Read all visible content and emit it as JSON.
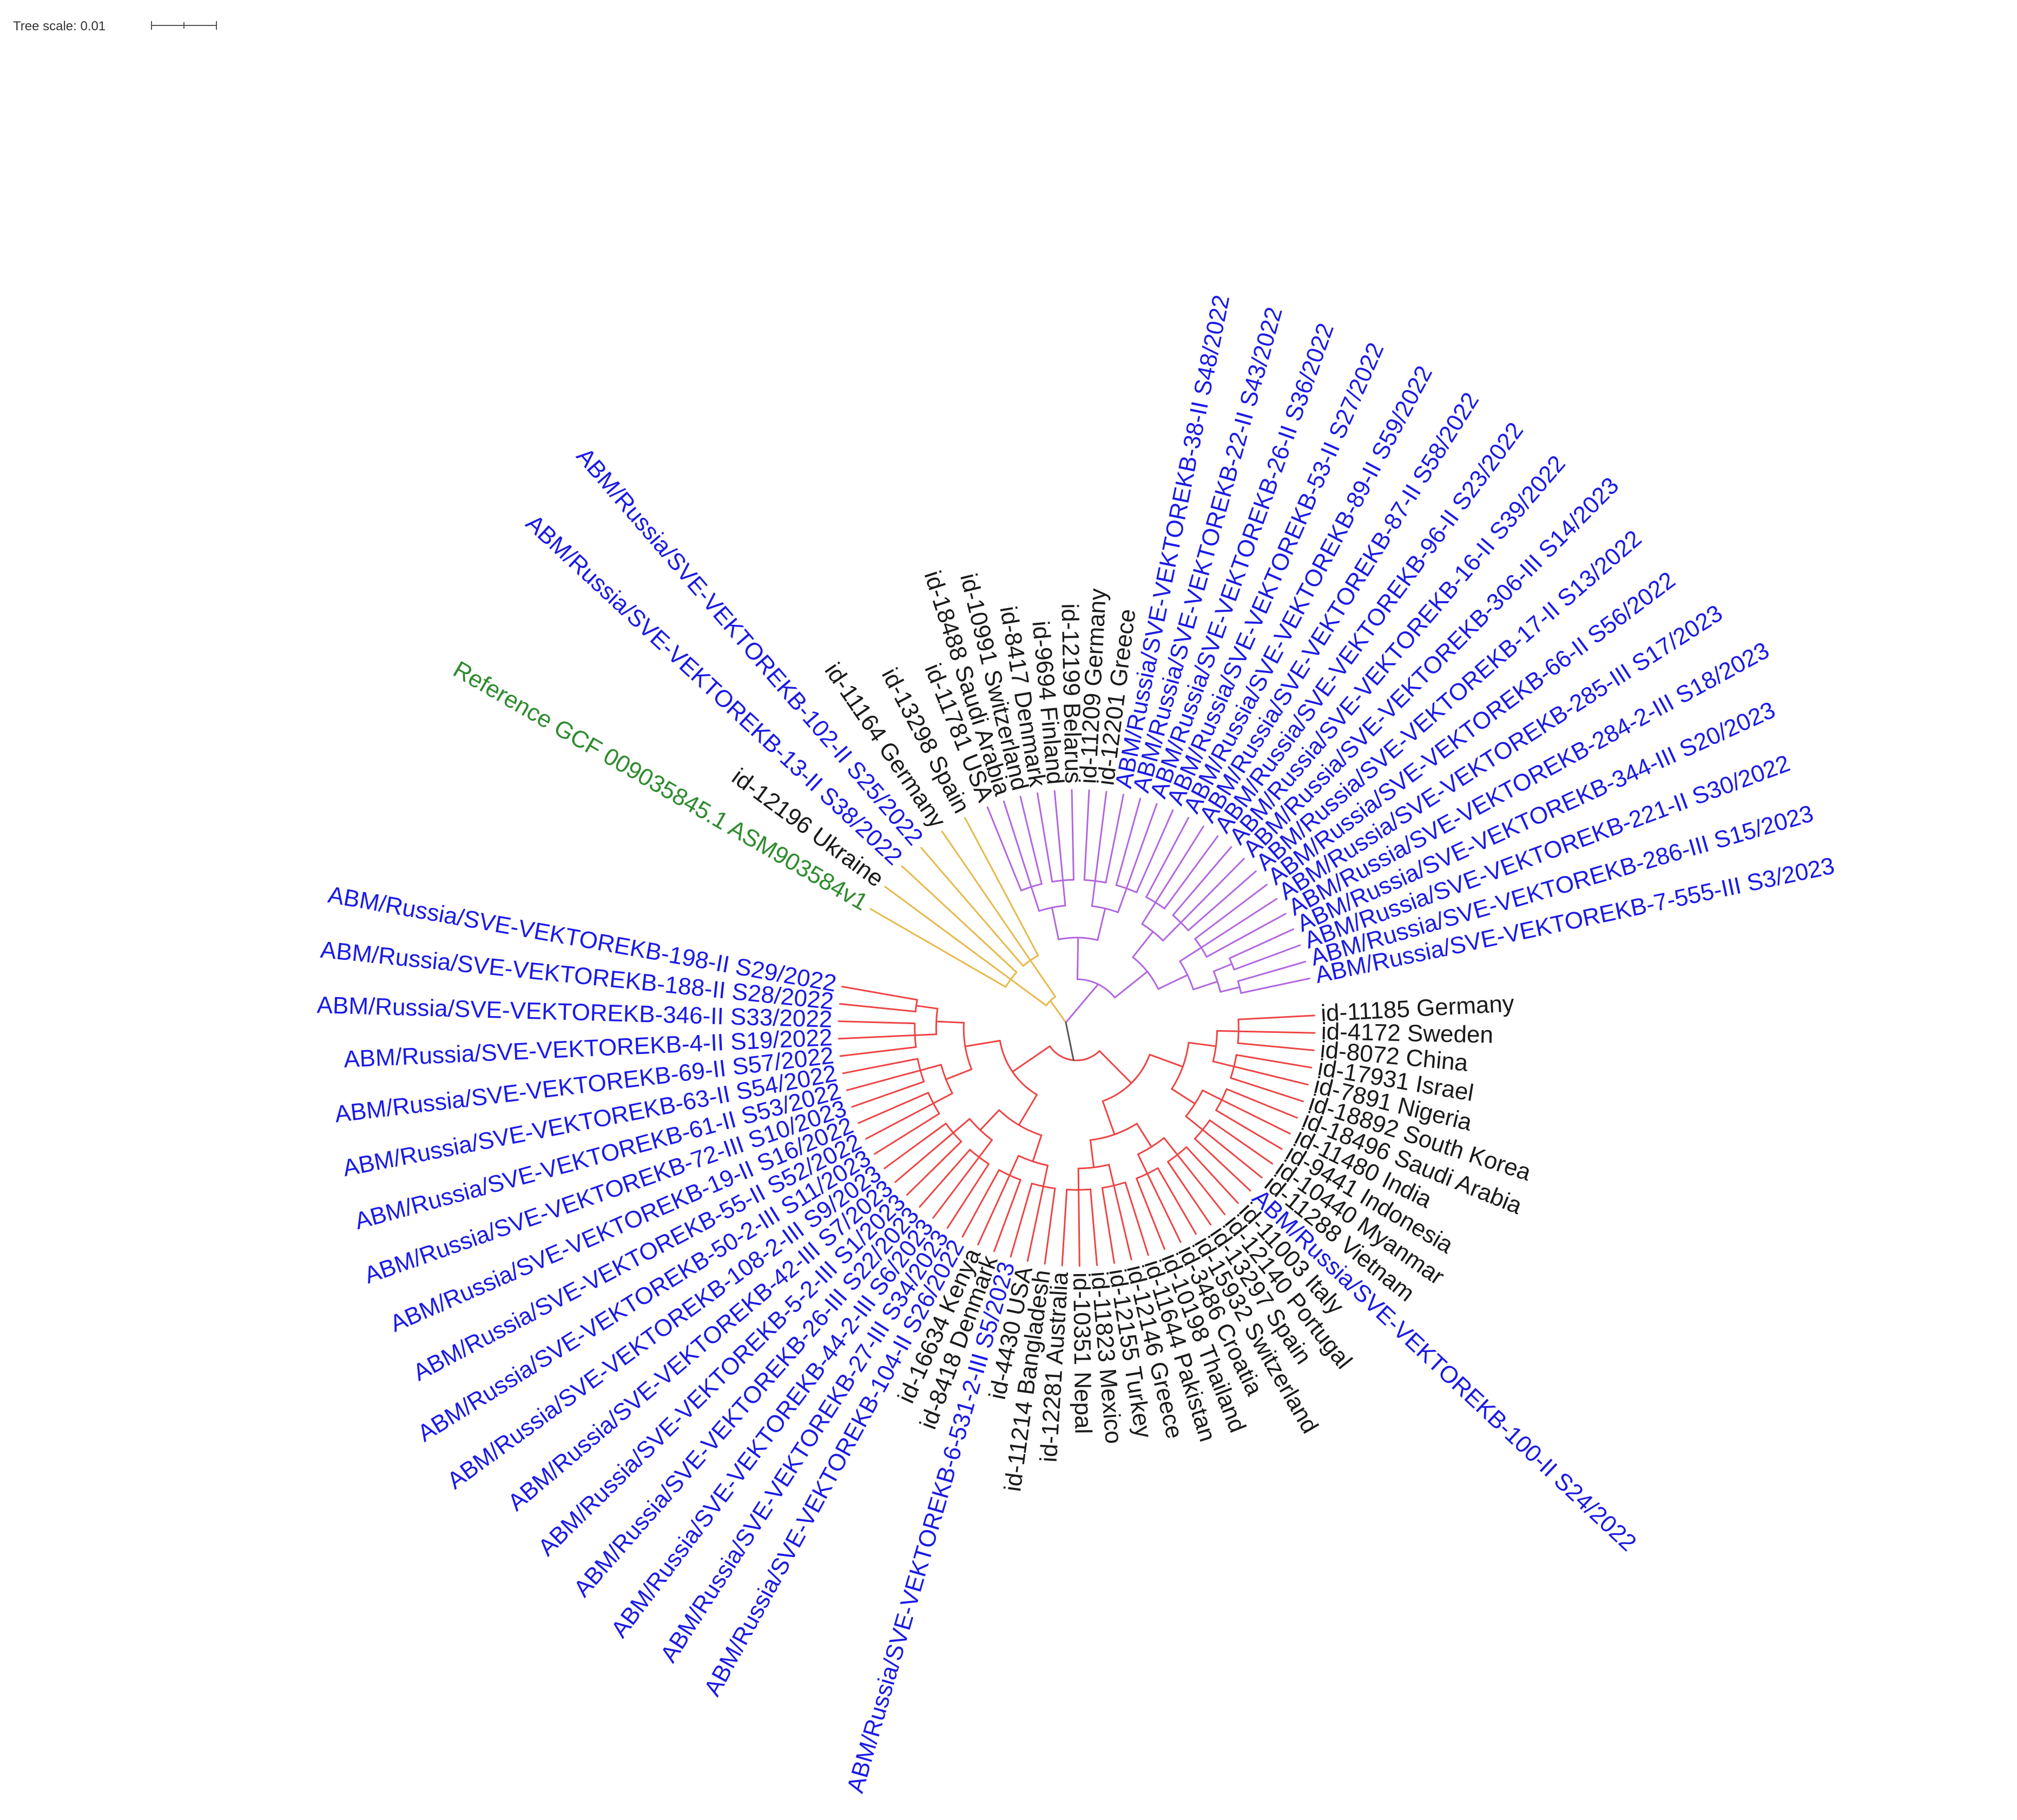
{
  "scale": {
    "label": "Tree scale: 0.01"
  },
  "colors": {
    "orange_clade": "#e8b84a",
    "purple_clade": "#b266e0",
    "red_clade": "#ee4444",
    "root": "#555555",
    "label_blue": "#1a1ae6",
    "label_black": "#1a1a1a",
    "label_green": "#2e8b2e"
  },
  "tree": {
    "orange_leaves": [
      {
        "text": "Reference GCF 009035845.1 ASM903584v1",
        "color": "green"
      },
      {
        "text": "id-12196 Ukraine",
        "color": "black"
      },
      {
        "text": "ABM/Russia/SVE-VEKTOREKB-13-II S38/2022",
        "color": "blue"
      },
      {
        "text": "ABM/Russia/SVE-VEKTOREKB-102-II S25/2022",
        "color": "blue"
      },
      {
        "text": "id-11164 Germany",
        "color": "black"
      },
      {
        "text": "id-13298 Spain",
        "color": "black"
      }
    ],
    "purple_leaves": [
      {
        "text": "id-11781 USA",
        "color": "black"
      },
      {
        "text": "id-18488 Saudi Arabia",
        "color": "black"
      },
      {
        "text": "id-10991 Switzerland",
        "color": "black"
      },
      {
        "text": "id-8417 Denmark",
        "color": "black"
      },
      {
        "text": "id-9694 Finland",
        "color": "black"
      },
      {
        "text": "id-12199 Belarus",
        "color": "black"
      },
      {
        "text": "id-11209 Germany",
        "color": "black"
      },
      {
        "text": "id-12201 Greece",
        "color": "black"
      },
      {
        "text": "ABM/Russia/SVE-VEKTOREKB-38-II S48/2022",
        "color": "blue"
      },
      {
        "text": "ABM/Russia/SVE-VEKTOREKB-22-II S43/2022",
        "color": "blue"
      },
      {
        "text": "ABM/Russia/SVE-VEKTOREKB-26-II S36/2022",
        "color": "blue"
      },
      {
        "text": "ABM/Russia/SVE-VEKTOREKB-53-II S27/2022",
        "color": "blue"
      },
      {
        "text": "ABM/Russia/SVE-VEKTOREKB-89-II S59/2022",
        "color": "blue"
      },
      {
        "text": "ABM/Russia/SVE-VEKTOREKB-87-II S58/2022",
        "color": "blue"
      },
      {
        "text": "ABM/Russia/SVE-VEKTOREKB-96-II S23/2022",
        "color": "blue"
      },
      {
        "text": "ABM/Russia/SVE-VEKTOREKB-16-II S39/2022",
        "color": "blue"
      },
      {
        "text": "ABM/Russia/SVE-VEKTOREKB-306-III S14/2023",
        "color": "blue"
      },
      {
        "text": "ABM/Russia/SVE-VEKTOREKB-17-II S13/2022",
        "color": "blue"
      },
      {
        "text": "ABM/Russia/SVE-VEKTOREKB-66-II S56/2022",
        "color": "blue"
      },
      {
        "text": "ABM/Russia/SVE-VEKTOREKB-285-III S17/2023",
        "color": "blue"
      },
      {
        "text": "ABM/Russia/SVE-VEKTOREKB-284-2-III S18/2023",
        "color": "blue"
      },
      {
        "text": "ABM/Russia/SVE-VEKTOREKB-344-III S20/2023",
        "color": "blue"
      },
      {
        "text": "ABM/Russia/SVE-VEKTOREKB-221-II S30/2022",
        "color": "blue"
      },
      {
        "text": "ABM/Russia/SVE-VEKTOREKB-286-III S15/2023",
        "color": "blue"
      },
      {
        "text": "ABM/Russia/SVE-VEKTOREKB-7-555-III S3/2023",
        "color": "blue"
      }
    ],
    "red_leaves": [
      {
        "text": "id-11185 Germany",
        "color": "black"
      },
      {
        "text": "id-4172 Sweden",
        "color": "black"
      },
      {
        "text": "id-8072 China",
        "color": "black"
      },
      {
        "text": "id-17931 Israel",
        "color": "black"
      },
      {
        "text": "id-7891 Nigeria",
        "color": "black"
      },
      {
        "text": "id-18892 South Korea",
        "color": "black"
      },
      {
        "text": "id-18496 Saudi Arabia",
        "color": "black"
      },
      {
        "text": "id-11480 India",
        "color": "black"
      },
      {
        "text": "id-9441 Indonesia",
        "color": "black"
      },
      {
        "text": "id-10440 Myanmar",
        "color": "black"
      },
      {
        "text": "id-11288 Vietnam",
        "color": "black"
      },
      {
        "text": "ABM/Russia/SVE-VEKTOREKB-100-II S24/2022",
        "color": "blue"
      },
      {
        "text": "id-11003 Italy",
        "color": "black"
      },
      {
        "text": "id-12140 Portugal",
        "color": "black"
      },
      {
        "text": "id-13297 Spain",
        "color": "black"
      },
      {
        "text": "id-15932 Switzerland",
        "color": "black"
      },
      {
        "text": "id-3486 Croatia",
        "color": "black"
      },
      {
        "text": "id-10198 Thailand",
        "color": "black"
      },
      {
        "text": "id-11644 Pakistan",
        "color": "black"
      },
      {
        "text": "id-12146 Greece",
        "color": "black"
      },
      {
        "text": "id-12155 Turkey",
        "color": "black"
      },
      {
        "text": "id-11823 Mexico",
        "color": "black"
      },
      {
        "text": "id-10351 Nepal",
        "color": "black"
      },
      {
        "text": "id-12281 Australia",
        "color": "black"
      },
      {
        "text": "id-11214 Bangladesh",
        "color": "black"
      },
      {
        "text": "id-4430 USA",
        "color": "black"
      },
      {
        "text": "ABM/Russia/SVE-VEKTOREKB-6-531-2-III S5/2023",
        "color": "blue"
      },
      {
        "text": "id-8418 Denmark",
        "color": "black"
      },
      {
        "text": "id-16634 Kenya",
        "color": "black"
      },
      {
        "text": "ABM/Russia/SVE-VEKTOREKB-104-II S26/2022",
        "color": "blue"
      },
      {
        "text": "ABM/Russia/SVE-VEKTOREKB-27-III S34/2023",
        "color": "blue"
      },
      {
        "text": "ABM/Russia/SVE-VEKTOREKB-44-2-III S6/2023",
        "color": "blue"
      },
      {
        "text": "ABM/Russia/SVE-VEKTOREKB-26-III S22/2023",
        "color": "blue"
      },
      {
        "text": "ABM/Russia/SVE-VEKTOREKB-5-2-III S1/2023",
        "color": "blue"
      },
      {
        "text": "ABM/Russia/SVE-VEKTOREKB-42-III S7/2023",
        "color": "blue"
      },
      {
        "text": "ABM/Russia/SVE-VEKTOREKB-108-2-III S9/2023",
        "color": "blue"
      },
      {
        "text": "ABM/Russia/SVE-VEKTOREKB-50-2-III S11/2023",
        "color": "blue"
      },
      {
        "text": "ABM/Russia/SVE-VEKTOREKB-55-II S52/2022",
        "color": "blue"
      },
      {
        "text": "ABM/Russia/SVE-VEKTOREKB-19-II S16/2022",
        "color": "blue"
      },
      {
        "text": "ABM/Russia/SVE-VEKTOREKB-72-III S10/2023",
        "color": "blue"
      },
      {
        "text": "ABM/Russia/SVE-VEKTOREKB-61-II S53/2022",
        "color": "blue"
      },
      {
        "text": "ABM/Russia/SVE-VEKTOREKB-63-II S54/2022",
        "color": "blue"
      },
      {
        "text": "ABM/Russia/SVE-VEKTOREKB-69-II S57/2022",
        "color": "blue"
      },
      {
        "text": "ABM/Russia/SVE-VEKTOREKB-4-II S19/2022",
        "color": "blue"
      },
      {
        "text": "ABM/Russia/SVE-VEKTOREKB-346-II S33/2022",
        "color": "blue"
      },
      {
        "text": "ABM/Russia/SVE-VEKTOREKB-188-II S28/2022",
        "color": "blue"
      },
      {
        "text": "ABM/Russia/SVE-VEKTOREKB-198-II S29/2022",
        "color": "blue"
      }
    ]
  }
}
